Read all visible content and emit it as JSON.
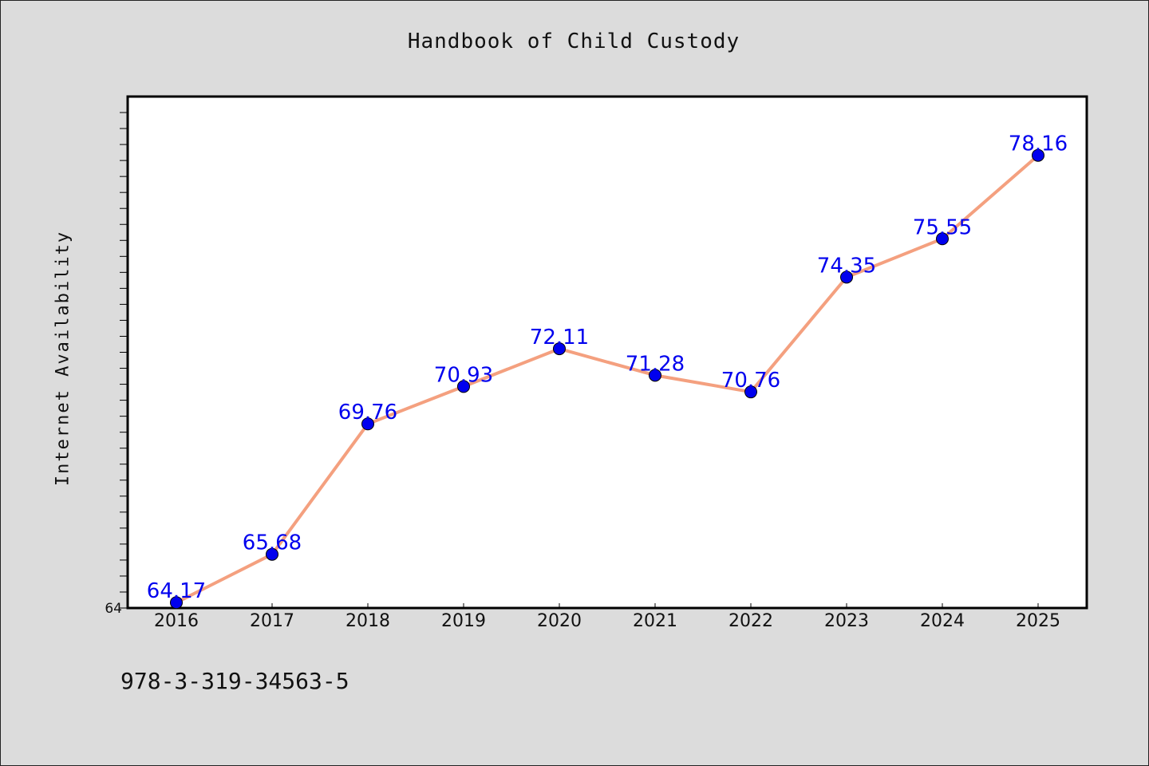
{
  "chart_data": {
    "type": "line",
    "title": "Handbook of Child Custody",
    "xlabel": "",
    "ylabel": "Internet Availability",
    "categories": [
      "2016",
      "2017",
      "2018",
      "2019",
      "2020",
      "2021",
      "2022",
      "2023",
      "2024",
      "2025"
    ],
    "series": [
      {
        "values": [
          64.17,
          65.68,
          69.76,
          70.93,
          72.11,
          71.28,
          70.76,
          74.35,
          75.55,
          78.16
        ]
      }
    ],
    "ylim": [
      64,
      80
    ],
    "y_tick_labels": [
      "64"
    ],
    "grid": false,
    "legend": "none",
    "line_color": "#f4a07f",
    "marker_color": "#0000ee",
    "label_color": "#0000ee"
  },
  "footer": {
    "code": "978-3-319-34563-5"
  }
}
